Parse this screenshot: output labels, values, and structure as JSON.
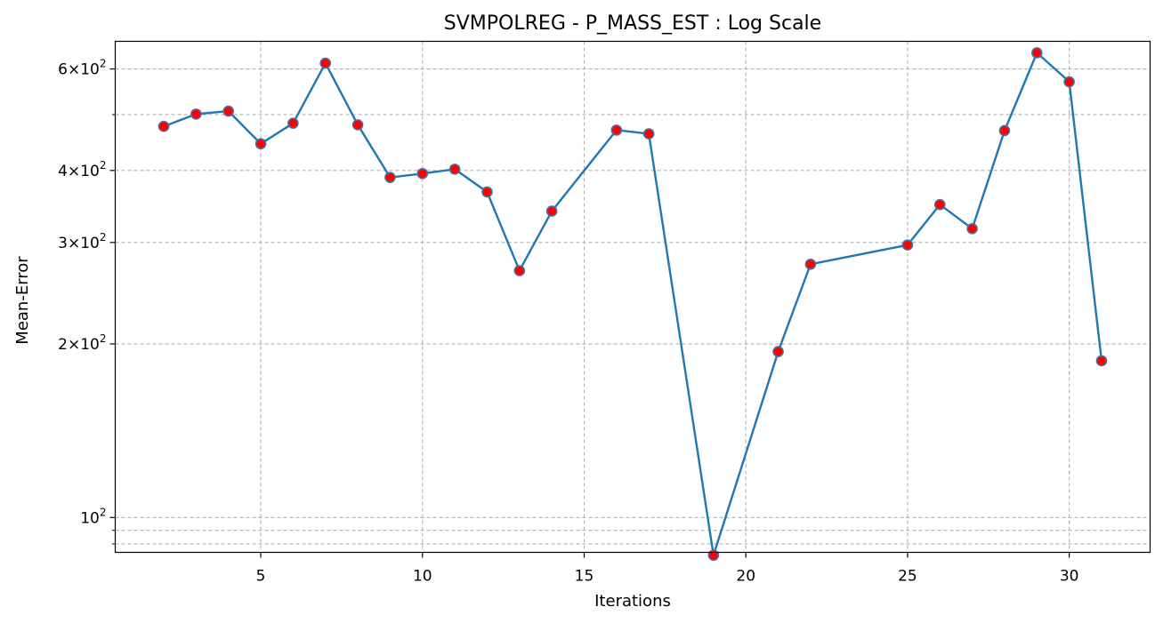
{
  "chart_data": {
    "type": "line",
    "title": "SVMPOLREG - P_MASS_EST : Log Scale",
    "xlabel": "Iterations",
    "ylabel": "Mean-Error",
    "yscale": "log",
    "xlim": [
      0.5,
      32.5
    ],
    "ylim": [
      87,
      670
    ],
    "grid": true,
    "x_ticks": [
      5,
      10,
      15,
      20,
      25,
      30
    ],
    "y_major_ticks": [
      {
        "value": 100,
        "mantissa": "",
        "exponent": "2"
      },
      {
        "value": 200,
        "mantissa": "2",
        "exponent": "2"
      },
      {
        "value": 300,
        "mantissa": "3",
        "exponent": "2"
      },
      {
        "value": 400,
        "mantissa": "4",
        "exponent": "2"
      },
      {
        "value": 600,
        "mantissa": "6",
        "exponent": "2"
      }
    ],
    "y_minor_ticks": [
      90,
      95,
      500
    ],
    "line_color": "#1f77b4",
    "marker_fill": "#ff0000",
    "marker_edge": "#4a6fa0",
    "grid_color": "#b0b0b0",
    "series": [
      {
        "x": [
          2,
          3,
          4,
          5,
          6,
          7,
          8,
          9,
          10,
          11,
          12,
          13,
          14,
          16,
          17,
          19,
          21,
          22,
          25,
          26,
          27,
          28,
          29,
          30,
          31
        ],
        "y": [
          477,
          501,
          507,
          445,
          483,
          614,
          480,
          389,
          395,
          402,
          367,
          268,
          340,
          470,
          463,
          86,
          194,
          275,
          297,
          349,
          317,
          469,
          640,
          570,
          187
        ]
      }
    ]
  }
}
